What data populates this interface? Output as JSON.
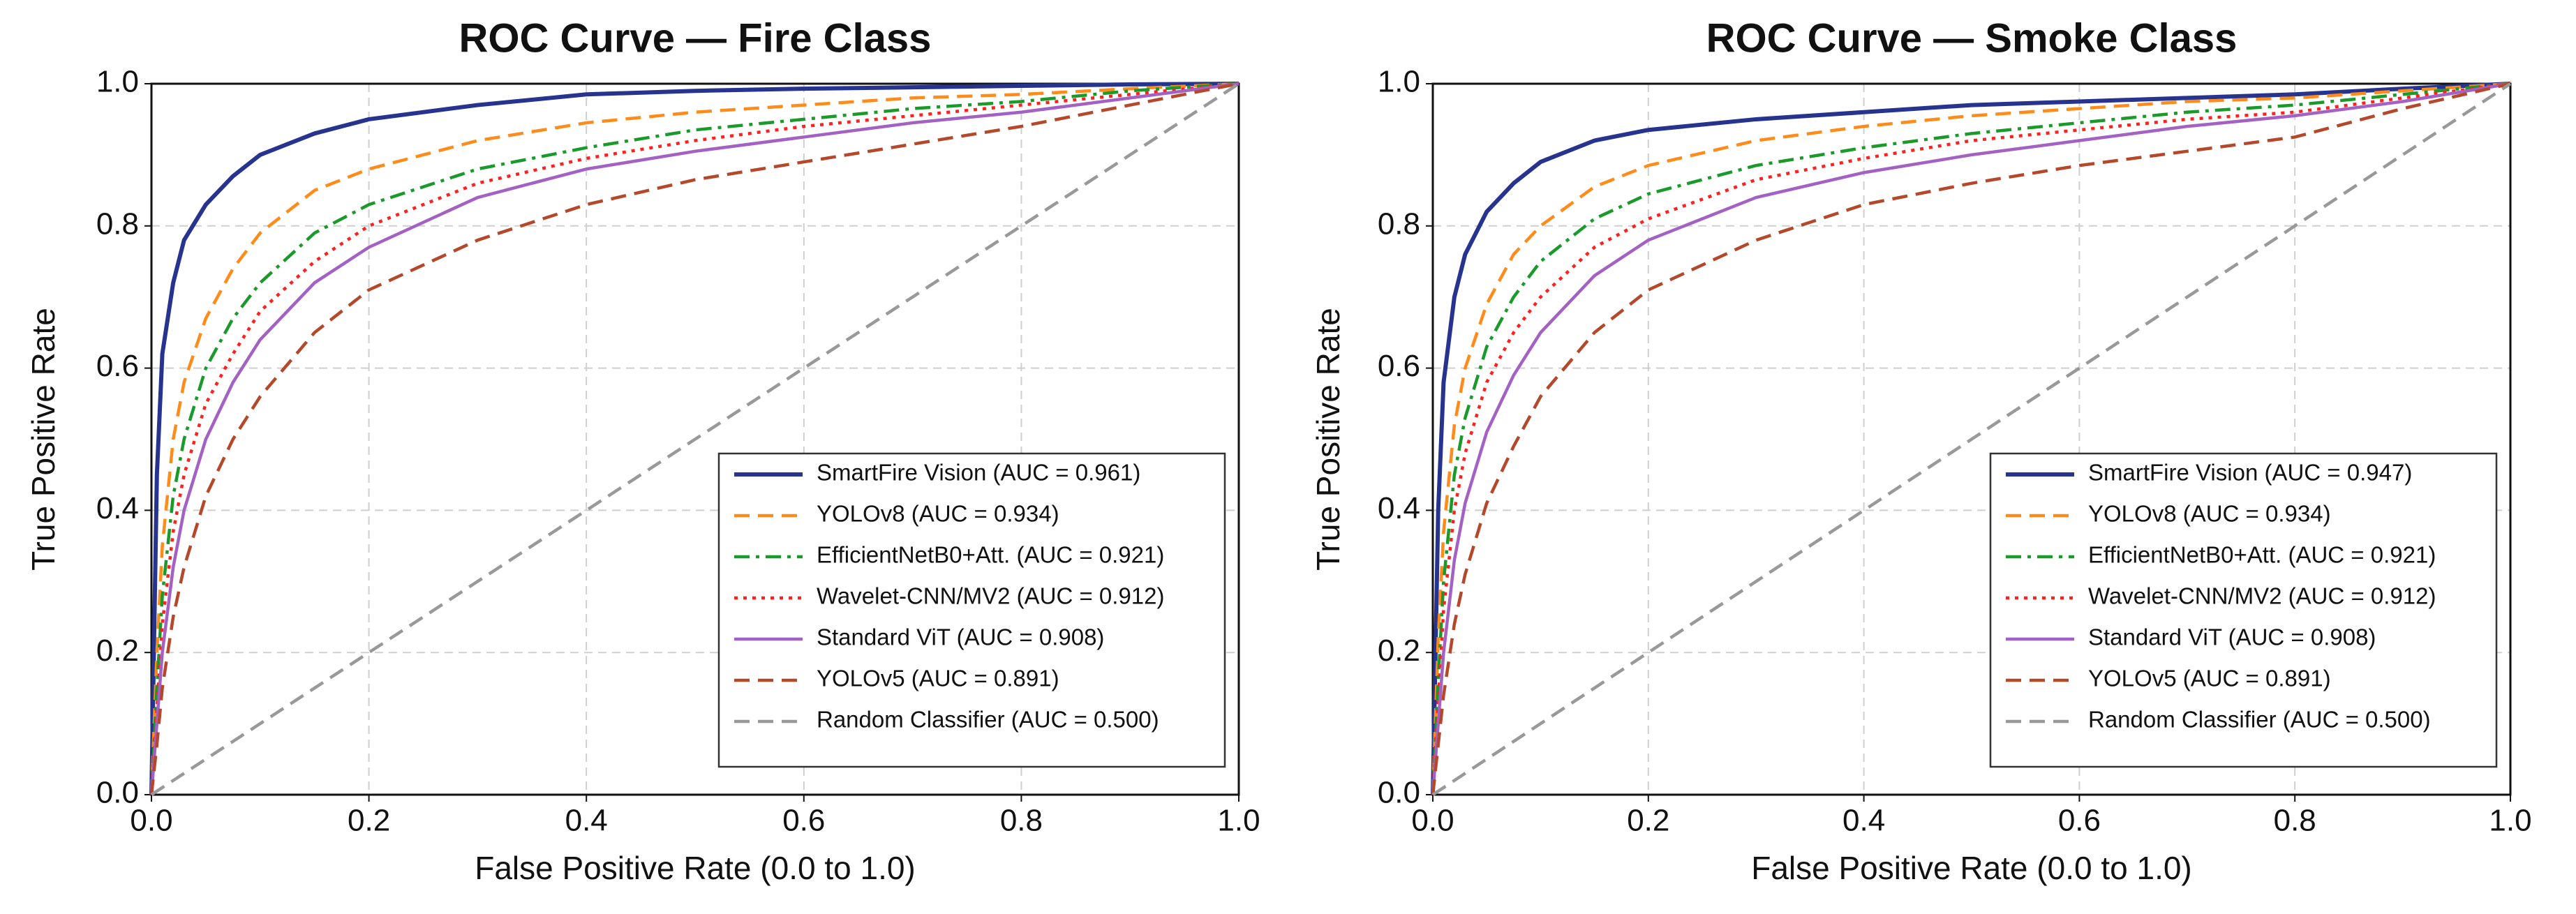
{
  "chart_data": [
    {
      "type": "line",
      "title": "ROC Curve — Fire Class",
      "x_label": "False Positive Rate (0.0 to 1.0)",
      "y_label": "True Positive Rate",
      "x": [
        0,
        0.005,
        0.01,
        0.02,
        0.03,
        0.05,
        0.075,
        0.1,
        0.15,
        0.2,
        0.3,
        0.4,
        0.5,
        0.6,
        0.7,
        0.8,
        0.9,
        1.0
      ],
      "series": [
        {
          "name": "SmartFire Vision (AUC = 0.961)",
          "color": "#26338f",
          "linestyle": "solid",
          "values": [
            0,
            0.45,
            0.62,
            0.72,
            0.78,
            0.83,
            0.87,
            0.9,
            0.93,
            0.95,
            0.97,
            0.985,
            0.99,
            0.993,
            0.995,
            0.997,
            0.999,
            1.0
          ]
        },
        {
          "name": "YOLOv8 (AUC = 0.934)",
          "color": "#ff8c1a",
          "linestyle": "dashed",
          "values": [
            0,
            0.2,
            0.35,
            0.5,
            0.58,
            0.67,
            0.74,
            0.79,
            0.85,
            0.88,
            0.92,
            0.945,
            0.96,
            0.97,
            0.98,
            0.985,
            0.993,
            1.0
          ]
        },
        {
          "name": "EfficientNetB0+Att. (AUC = 0.921)",
          "color": "#1a9a2a",
          "linestyle": "dashdot",
          "values": [
            0,
            0.15,
            0.28,
            0.42,
            0.5,
            0.6,
            0.67,
            0.72,
            0.79,
            0.83,
            0.88,
            0.91,
            0.935,
            0.95,
            0.965,
            0.975,
            0.99,
            1.0
          ]
        },
        {
          "name": "Wavelet-CNN/MV2 (AUC = 0.912)",
          "color": "#ff2020",
          "linestyle": "dotted",
          "values": [
            0,
            0.12,
            0.24,
            0.37,
            0.45,
            0.55,
            0.62,
            0.68,
            0.75,
            0.8,
            0.86,
            0.895,
            0.92,
            0.94,
            0.955,
            0.97,
            0.985,
            1.0
          ]
        },
        {
          "name": "Standard ViT (AUC = 0.908)",
          "color": "#a461c4",
          "linestyle": "solid",
          "values": [
            0,
            0.1,
            0.2,
            0.32,
            0.4,
            0.5,
            0.58,
            0.64,
            0.72,
            0.77,
            0.84,
            0.88,
            0.905,
            0.925,
            0.945,
            0.96,
            0.98,
            1.0
          ]
        },
        {
          "name": "YOLOv5 (AUC = 0.891)",
          "color": "#b5472a",
          "linestyle": "dashed",
          "values": [
            0,
            0.07,
            0.15,
            0.25,
            0.32,
            0.42,
            0.5,
            0.56,
            0.65,
            0.71,
            0.78,
            0.83,
            0.865,
            0.89,
            0.915,
            0.94,
            0.97,
            1.0
          ]
        },
        {
          "name": "Random Classifier (AUC = 0.500)",
          "color": "#999999",
          "linestyle": "dashed",
          "values": [
            0,
            0.005,
            0.01,
            0.02,
            0.03,
            0.05,
            0.075,
            0.1,
            0.15,
            0.2,
            0.3,
            0.4,
            0.5,
            0.6,
            0.7,
            0.8,
            0.9,
            1.0
          ]
        }
      ],
      "xlim": [
        0,
        1
      ],
      "ylim": [
        0,
        1
      ],
      "xticks": [
        {
          "value": 0,
          "label": "0.0"
        },
        0.2,
        0.4,
        0.6,
        0.8,
        {
          "value": 1,
          "label": "1.0"
        }
      ],
      "yticks": [
        {
          "value": 0,
          "label": "0.0"
        },
        0.2,
        0.4,
        0.6,
        0.8,
        {
          "value": 1,
          "label": "1.0"
        }
      ],
      "grid": true,
      "legend": "lower right"
    },
    {
      "type": "line",
      "title": "ROC Curve — Smoke Class",
      "x_label": "False Positive Rate (0.0 to 1.0)",
      "y_label": "True Positive Rate",
      "x": [
        0,
        0.005,
        0.01,
        0.02,
        0.03,
        0.05,
        0.075,
        0.1,
        0.15,
        0.2,
        0.3,
        0.4,
        0.5,
        0.6,
        0.7,
        0.8,
        0.9,
        1.0
      ],
      "series": [
        {
          "name": "SmartFire Vision (AUC = 0.947)",
          "color": "#26338f",
          "linestyle": "solid",
          "values": [
            0,
            0.4,
            0.58,
            0.7,
            0.76,
            0.82,
            0.86,
            0.89,
            0.92,
            0.935,
            0.95,
            0.96,
            0.97,
            0.975,
            0.98,
            0.985,
            0.993,
            1.0
          ]
        },
        {
          "name": "YOLOv8 (AUC = 0.934)",
          "color": "#ff8c1a",
          "linestyle": "dashed",
          "values": [
            0,
            0.22,
            0.37,
            0.52,
            0.6,
            0.69,
            0.76,
            0.8,
            0.855,
            0.885,
            0.92,
            0.94,
            0.955,
            0.965,
            0.975,
            0.98,
            0.99,
            1.0
          ]
        },
        {
          "name": "EfficientNetB0+Att. (AUC = 0.921)",
          "color": "#1a9a2a",
          "linestyle": "dashdot",
          "values": [
            0,
            0.16,
            0.3,
            0.45,
            0.53,
            0.63,
            0.7,
            0.75,
            0.81,
            0.845,
            0.885,
            0.91,
            0.93,
            0.945,
            0.96,
            0.97,
            0.985,
            1.0
          ]
        },
        {
          "name": "Wavelet-CNN/MV2 (AUC = 0.912)",
          "color": "#ff2020",
          "linestyle": "dotted",
          "values": [
            0,
            0.13,
            0.26,
            0.4,
            0.48,
            0.58,
            0.65,
            0.7,
            0.77,
            0.81,
            0.865,
            0.895,
            0.92,
            0.935,
            0.95,
            0.96,
            0.98,
            1.0
          ]
        },
        {
          "name": "Standard ViT (AUC = 0.908)",
          "color": "#a461c4",
          "linestyle": "solid",
          "values": [
            0,
            0.1,
            0.2,
            0.33,
            0.41,
            0.51,
            0.59,
            0.65,
            0.73,
            0.78,
            0.84,
            0.875,
            0.9,
            0.92,
            0.94,
            0.955,
            0.975,
            1.0
          ]
        },
        {
          "name": "YOLOv5 (AUC = 0.891)",
          "color": "#b5472a",
          "linestyle": "dashed",
          "values": [
            0,
            0.07,
            0.14,
            0.24,
            0.31,
            0.41,
            0.49,
            0.56,
            0.65,
            0.71,
            0.78,
            0.83,
            0.86,
            0.885,
            0.905,
            0.925,
            0.965,
            1.0
          ]
        },
        {
          "name": "Random Classifier (AUC = 0.500)",
          "color": "#999999",
          "linestyle": "dashed",
          "values": [
            0,
            0.005,
            0.01,
            0.02,
            0.03,
            0.05,
            0.075,
            0.1,
            0.15,
            0.2,
            0.3,
            0.4,
            0.5,
            0.6,
            0.7,
            0.8,
            0.9,
            1.0
          ]
        }
      ],
      "xlim": [
        0,
        1
      ],
      "ylim": [
        0,
        1
      ],
      "xticks": [
        {
          "value": 0,
          "label": "0.0"
        },
        0.2,
        0.4,
        0.6,
        0.8,
        {
          "value": 1,
          "label": "1.0"
        }
      ],
      "yticks": [
        {
          "value": 0,
          "label": "0.0"
        },
        0.2,
        0.4,
        0.6,
        0.8,
        {
          "value": 1,
          "label": "1.0"
        }
      ],
      "grid": true,
      "legend": "lower right"
    }
  ]
}
